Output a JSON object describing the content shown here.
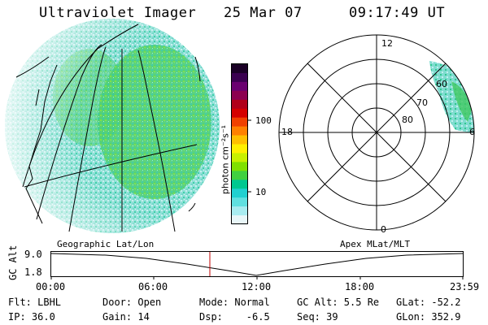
{
  "header": {
    "title": "Ultraviolet Imager",
    "date": "25 Mar 07",
    "time": "09:17:49 UT"
  },
  "colorbar": {
    "label": "photon cm⁻²s⁻¹",
    "ticks": [
      "100",
      "10"
    ],
    "colors": [
      "#1a0026",
      "#3a0050",
      "#6a0070",
      "#8c0050",
      "#b0001a",
      "#d40000",
      "#f04000",
      "#ff8000",
      "#ffbf00",
      "#ffef00",
      "#c8f000",
      "#80e000",
      "#40d040",
      "#00c890",
      "#20d0d0",
      "#60e0e0",
      "#a8ecf0",
      "#e8f6f8"
    ]
  },
  "maps": {
    "left_label": "Geographic Lat/Lon",
    "right_label": "Apex MLat/MLT"
  },
  "polar": {
    "mlt_labels": {
      "top": "12",
      "bottom": "0",
      "left": "18",
      "right": "6"
    },
    "lat_labels": [
      "60",
      "70",
      "80"
    ]
  },
  "strip": {
    "y_axis_label": "GC Alt",
    "y_ticks": [
      "9.0",
      "1.8"
    ],
    "x_ticks": [
      "00:00",
      "06:00",
      "12:00",
      "18:00",
      "23:59"
    ]
  },
  "info": {
    "flt": "Flt: LBHL",
    "door": "Door: Open",
    "mode": "Mode: Normal",
    "gc_alt": "GC Alt: 5.5 Re",
    "glat": "GLat: -52.2",
    "ip": "IP: 36.0",
    "gain": "Gain: 14",
    "dsp": "Dsp:    -6.5",
    "seq": "Seq: 39",
    "glon": "GLon: 352.9"
  }
}
